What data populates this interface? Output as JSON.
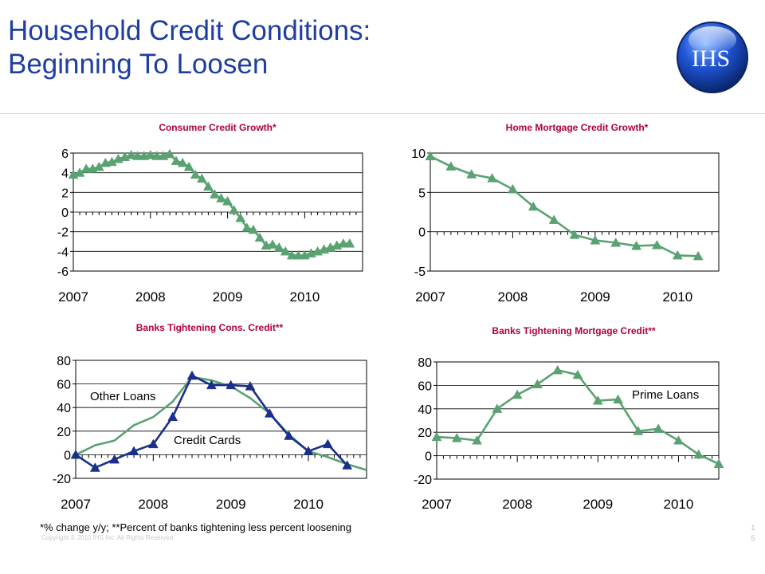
{
  "slide": {
    "title_line1": "Household Credit Conditions:",
    "title_line2": "Beginning To Loosen",
    "logo_text": "IHS",
    "footnote": "*% change y/y; **Percent of banks tightening less percent loosening",
    "copyright": "Copyright © 2010 IHS Inc. All Rights Reserved.",
    "page_number": [
      "1",
      "5"
    ]
  },
  "colors": {
    "title": "#1f3f9f",
    "chart_title": "#b1003a",
    "green_series": "#5aa272",
    "blue_series": "#1a2f8a",
    "divider": "#f3dc84"
  },
  "chart_data": [
    {
      "id": "consumer",
      "type": "line",
      "title": "Consumer Credit Growth*",
      "xlim": [
        2007,
        2010.75
      ],
      "ylim": [
        -6,
        6
      ],
      "yticks": [
        6,
        4,
        2,
        0,
        -2,
        -4,
        -6
      ],
      "ytick_labels": [
        "6",
        "4",
        "2",
        "0",
        "-2",
        "-4",
        "-6"
      ],
      "xtick_labels": [
        "2007",
        "2008",
        "2009",
        "2010"
      ],
      "x_minor_per_year": 12,
      "grid": true,
      "series": [
        {
          "color": "green",
          "marker": "triangle",
          "x": [
            2007.0,
            2007.083,
            2007.167,
            2007.25,
            2007.333,
            2007.417,
            2007.5,
            2007.583,
            2007.667,
            2007.75,
            2007.833,
            2007.917,
            2008.0,
            2008.083,
            2008.167,
            2008.25,
            2008.333,
            2008.417,
            2008.5,
            2008.583,
            2008.667,
            2008.75,
            2008.833,
            2008.917,
            2009.0,
            2009.083,
            2009.167,
            2009.25,
            2009.333,
            2009.417,
            2009.5,
            2009.583,
            2009.667,
            2009.75,
            2009.833,
            2009.917,
            2010.0,
            2010.083,
            2010.167,
            2010.25,
            2010.333,
            2010.417,
            2010.5,
            2010.583
          ],
          "y": [
            3.8,
            4.0,
            4.4,
            4.4,
            4.6,
            5.0,
            5.1,
            5.4,
            5.6,
            5.8,
            5.7,
            5.7,
            5.8,
            5.7,
            5.7,
            5.9,
            5.2,
            5.0,
            4.6,
            3.8,
            3.4,
            2.6,
            1.8,
            1.4,
            1.1,
            0.2,
            -0.6,
            -1.6,
            -1.8,
            -2.6,
            -3.4,
            -3.3,
            -3.6,
            -4.0,
            -4.4,
            -4.4,
            -4.4,
            -4.2,
            -4.0,
            -3.8,
            -3.6,
            -3.4,
            -3.2,
            -3.2
          ]
        }
      ]
    },
    {
      "id": "mortgage",
      "type": "line",
      "title": "Home Mortgage Credit Growth*",
      "xlim": [
        2007,
        2010.5
      ],
      "ylim": [
        -5,
        10
      ],
      "yticks": [
        10,
        5,
        0,
        -5
      ],
      "ytick_labels": [
        "10",
        "5",
        "0",
        "-5"
      ],
      "xtick_labels": [
        "2007",
        "2008",
        "2009",
        "2010"
      ],
      "x_minor_per_year": 12,
      "grid": true,
      "series": [
        {
          "color": "green",
          "marker": "triangle",
          "x": [
            2007.0,
            2007.25,
            2007.5,
            2007.75,
            2008.0,
            2008.25,
            2008.5,
            2008.75,
            2009.0,
            2009.25,
            2009.5,
            2009.75,
            2010.0,
            2010.25
          ],
          "y": [
            9.6,
            8.3,
            7.3,
            6.8,
            5.4,
            3.2,
            1.5,
            -0.4,
            -1.1,
            -1.4,
            -1.8,
            -1.7,
            -3.0,
            -3.1
          ]
        }
      ]
    },
    {
      "id": "banks_cons",
      "type": "line",
      "title": "Banks Tightening Cons. Credit**",
      "xlim": [
        2007,
        2010.75
      ],
      "ylim": [
        -20,
        80
      ],
      "yticks": [
        80,
        60,
        40,
        20,
        0,
        -20
      ],
      "ytick_labels": [
        "80",
        "60",
        "40",
        "20",
        "0",
        "-20"
      ],
      "xtick_labels": [
        "2007",
        "2008",
        "2009",
        "2010"
      ],
      "x_minor_per_year": 12,
      "grid": true,
      "annotations": [
        "Other Loans",
        "Credit Cards"
      ],
      "series": [
        {
          "name": "Other Loans",
          "color": "green",
          "marker": "none",
          "x": [
            2007.0,
            2007.25,
            2007.5,
            2007.75,
            2008.0,
            2008.25,
            2008.5,
            2008.75,
            2009.0,
            2009.25,
            2009.5,
            2009.75,
            2010.0,
            2010.25,
            2010.5,
            2010.75
          ],
          "y": [
            0,
            8,
            12,
            25,
            32,
            45,
            66,
            63,
            58,
            48,
            35,
            17,
            3,
            -2,
            -8,
            -13
          ]
        },
        {
          "name": "Credit Cards",
          "color": "blue",
          "marker": "triangle",
          "x": [
            2007.0,
            2007.25,
            2007.5,
            2007.75,
            2008.0,
            2008.25,
            2008.5,
            2008.75,
            2009.0,
            2009.25,
            2009.5,
            2009.75,
            2010.0,
            2010.25,
            2010.5
          ],
          "y": [
            0,
            -11,
            -4,
            3,
            9,
            32,
            67,
            59,
            59,
            58,
            35,
            16,
            3,
            9,
            -9
          ]
        }
      ]
    },
    {
      "id": "banks_mort",
      "type": "line",
      "title": "Banks Tightening Mortgage Credit**",
      "xlim": [
        2007,
        2010.5
      ],
      "ylim": [
        -20,
        80
      ],
      "yticks": [
        80,
        60,
        40,
        20,
        0,
        -20
      ],
      "ytick_labels": [
        "80",
        "60",
        "40",
        "20",
        "0",
        "-20"
      ],
      "xtick_labels": [
        "2007",
        "2008",
        "2009",
        "2010"
      ],
      "x_minor_per_year": 12,
      "grid": true,
      "annotations": [
        "Prime Loans"
      ],
      "series": [
        {
          "name": "Prime Loans",
          "color": "green",
          "marker": "triangle",
          "x": [
            2007.0,
            2007.25,
            2007.5,
            2007.75,
            2008.0,
            2008.25,
            2008.5,
            2008.75,
            2009.0,
            2009.25,
            2009.5,
            2009.75,
            2010.0,
            2010.25,
            2010.5
          ],
          "y": [
            16,
            15,
            13,
            40,
            52,
            61,
            73,
            69,
            47,
            48,
            21,
            23,
            13,
            1,
            -7
          ]
        }
      ]
    }
  ]
}
